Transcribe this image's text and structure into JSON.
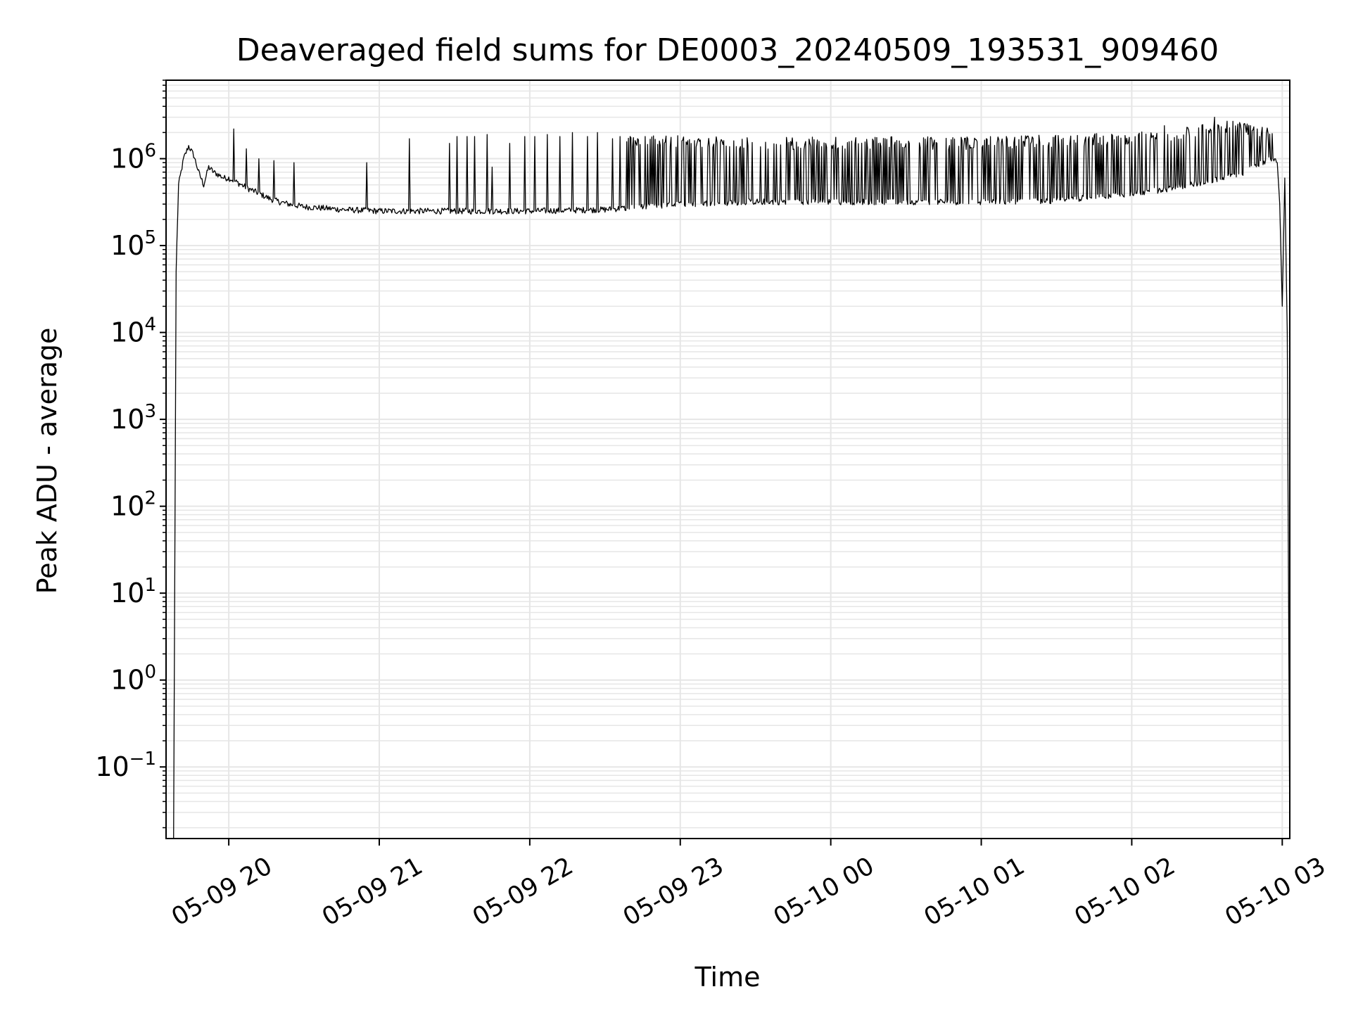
{
  "chart_data": {
    "type": "line",
    "title": "Deaveraged field sums for DE0003_20240509_193531_909460",
    "xlabel": "Time",
    "ylabel": "Peak ADU - average",
    "yscale": "log",
    "xlim": [
      "2024-05-09 19:35",
      "2024-05-10 03:03"
    ],
    "ylim": [
      0.015,
      8000000
    ],
    "grid": true,
    "x_ticks": [
      {
        "value": "2024-05-09 20:00",
        "label": "05-09 20"
      },
      {
        "value": "2024-05-09 21:00",
        "label": "05-09 21"
      },
      {
        "value": "2024-05-09 22:00",
        "label": "05-09 22"
      },
      {
        "value": "2024-05-09 23:00",
        "label": "05-09 23"
      },
      {
        "value": "2024-05-10 00:00",
        "label": "05-10 00"
      },
      {
        "value": "2024-05-10 01:00",
        "label": "05-10 01"
      },
      {
        "value": "2024-05-10 02:00",
        "label": "05-10 02"
      },
      {
        "value": "2024-05-10 03:00",
        "label": "05-10 03"
      }
    ],
    "y_ticks": [
      {
        "value": 0.1,
        "base": "10",
        "exp": "−1"
      },
      {
        "value": 1,
        "base": "10",
        "exp": "0"
      },
      {
        "value": 10,
        "base": "10",
        "exp": "1"
      },
      {
        "value": 100,
        "base": "10",
        "exp": "2"
      },
      {
        "value": 1000,
        "base": "10",
        "exp": "3"
      },
      {
        "value": 10000,
        "base": "10",
        "exp": "4"
      },
      {
        "value": 100000,
        "base": "10",
        "exp": "5"
      },
      {
        "value": 1000000,
        "base": "10",
        "exp": "6"
      }
    ],
    "series": [
      {
        "color": "#000000",
        "x": [
          "2024-05-09 19:38",
          "2024-05-09 19:39",
          "2024-05-09 19:40",
          "2024-05-09 19:42",
          "2024-05-09 19:44",
          "2024-05-09 19:46",
          "2024-05-09 19:48",
          "2024-05-09 19:50",
          "2024-05-09 19:52",
          "2024-05-09 19:54",
          "2024-05-09 19:56",
          "2024-05-09 19:58",
          "2024-05-09 20:00",
          "2024-05-09 20:04",
          "2024-05-09 20:08",
          "2024-05-09 20:12",
          "2024-05-09 20:16",
          "2024-05-09 20:20",
          "2024-05-09 20:24",
          "2024-05-09 20:30",
          "2024-05-09 20:38",
          "2024-05-09 20:45",
          "2024-05-09 21:00",
          "2024-05-09 21:30",
          "2024-05-09 22:00",
          "2024-05-09 22:30",
          "2024-05-09 23:00",
          "2024-05-09 23:30",
          "2024-05-10 00:00",
          "2024-05-10 00:30",
          "2024-05-10 01:00",
          "2024-05-10 01:30",
          "2024-05-10 02:00",
          "2024-05-10 02:15",
          "2024-05-10 02:30",
          "2024-05-10 02:45",
          "2024-05-10 02:55",
          "2024-05-10 02:58",
          "2024-05-10 02:59",
          "2024-05-10 03:00",
          "2024-05-10 03:01",
          "2024-05-10 03:02",
          "2024-05-10 03:03"
        ],
        "y": [
          0.015,
          50000,
          500000,
          1000000,
          1400000,
          1100000,
          700000,
          500000,
          800000,
          700000,
          650000,
          600000,
          600000,
          520000,
          450000,
          400000,
          350000,
          320000,
          300000,
          280000,
          270000,
          260000,
          250000,
          250000,
          250000,
          260000,
          300000,
          320000,
          320000,
          320000,
          320000,
          330000,
          400000,
          450000,
          550000,
          700000,
          1000000,
          900000,
          300000,
          20000,
          600000,
          10000,
          0.015
        ]
      }
    ],
    "spikes": {
      "x": [
        "2024-05-09 20:02",
        "2024-05-09 20:07",
        "2024-05-09 20:12",
        "2024-05-09 20:18",
        "2024-05-09 20:26",
        "2024-05-09 20:55",
        "2024-05-09 21:12",
        "2024-05-09 21:28",
        "2024-05-09 21:31",
        "2024-05-09 21:35",
        "2024-05-09 21:38",
        "2024-05-09 21:43",
        "2024-05-09 21:45",
        "2024-05-09 21:52",
        "2024-05-09 21:58",
        "2024-05-09 22:02",
        "2024-05-09 22:07",
        "2024-05-09 22:12",
        "2024-05-09 22:17",
        "2024-05-09 22:23",
        "2024-05-09 22:27",
        "2024-05-09 22:33",
        "2024-05-09 22:36",
        "2024-05-09 22:40",
        "2024-05-09 22:43",
        "2024-05-09 22:46",
        "2024-05-10 02:13",
        "2024-05-10 02:22",
        "2024-05-10 02:33",
        "2024-05-10 02:38",
        "2024-05-10 02:42",
        "2024-05-10 02:48",
        "2024-05-10 02:52"
      ],
      "y": [
        2200000,
        1300000,
        1000000,
        950000,
        900000,
        900000,
        1700000,
        1500000,
        1800000,
        1800000,
        1800000,
        1900000,
        800000,
        1500000,
        1800000,
        1800000,
        1900000,
        1800000,
        2000000,
        1800000,
        2000000,
        1700000,
        1800000,
        1800000,
        1700000,
        1800000,
        2400000,
        2300000,
        3000000,
        2700000,
        2000000,
        2100000,
        2300000
      ]
    },
    "dense_band": {
      "x_start": "2024-05-09 22:38",
      "x_end": "2024-05-10 02:56",
      "baseline": 250000,
      "envelope_x": [
        "2024-05-09 22:38",
        "2024-05-09 23:00",
        "2024-05-09 23:30",
        "2024-05-10 00:00",
        "2024-05-10 00:30",
        "2024-05-10 01:00",
        "2024-05-10 01:30",
        "2024-05-10 02:00",
        "2024-05-10 02:20",
        "2024-05-10 02:40",
        "2024-05-10 02:56"
      ],
      "envelope_y": [
        1700000,
        1800000,
        1700000,
        1700000,
        1700000,
        1700000,
        1800000,
        1900000,
        2200000,
        2600000,
        2100000
      ]
    }
  }
}
